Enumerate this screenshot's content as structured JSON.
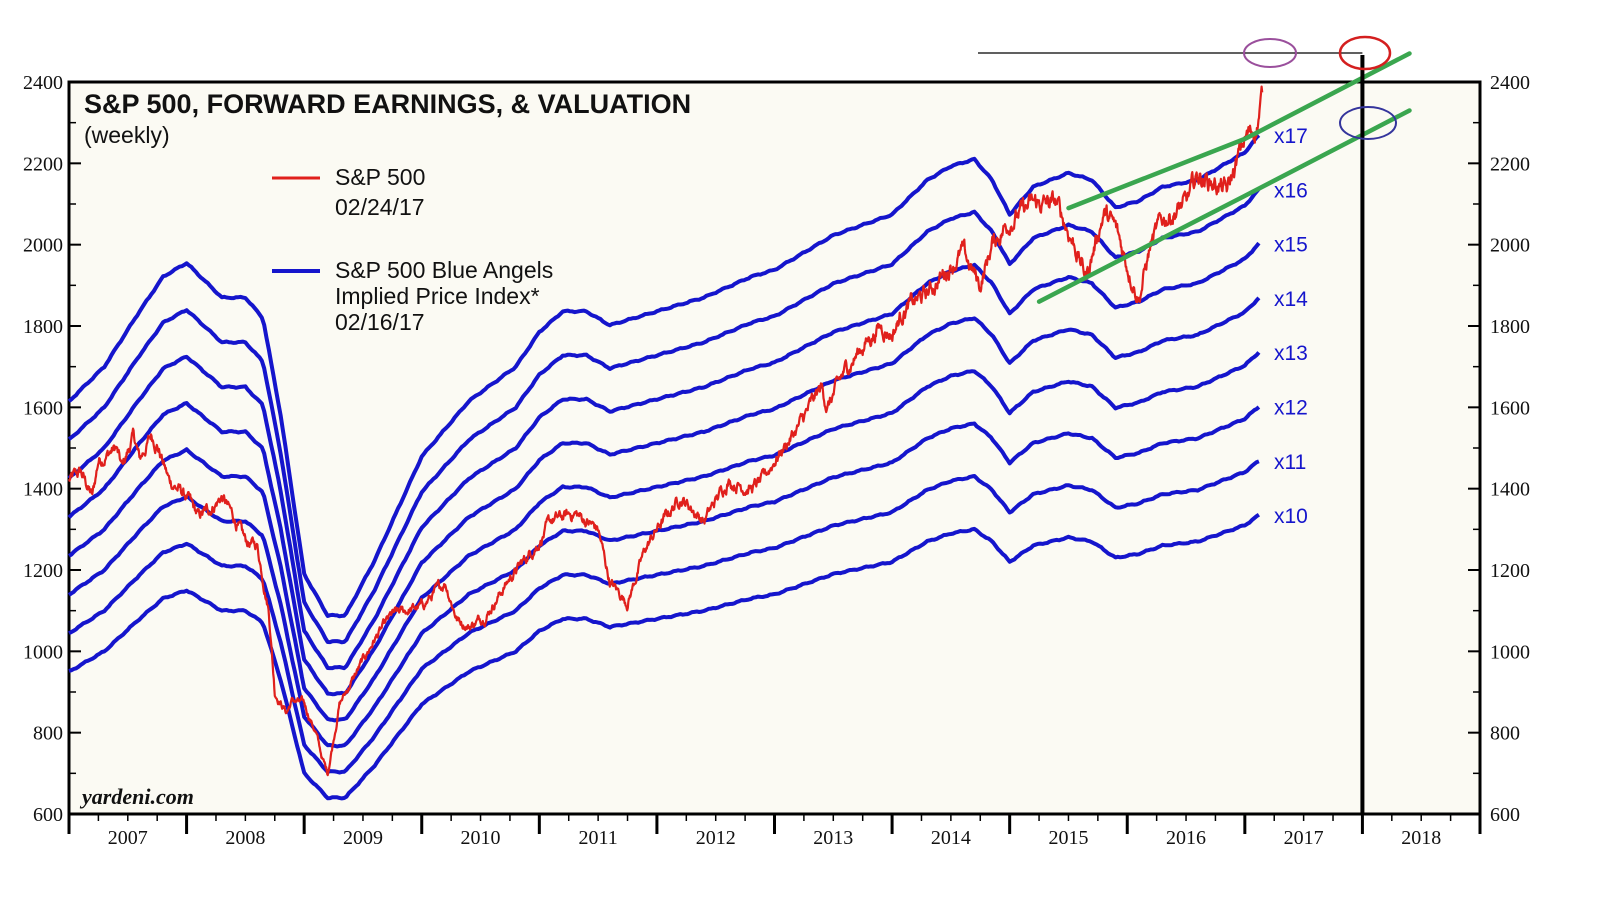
{
  "colors": {
    "sp500": "#e0201c",
    "blue_angels": "#1515cc",
    "channel": "#3aa64f",
    "plot_bg": "#fbfaf3",
    "axis": "#000000",
    "circle_purple": "#9a4f9c",
    "circle_red": "#d41f1f",
    "circle_blue": "#34349c"
  },
  "chart_data": {
    "type": "line",
    "title": "S&P 500, FORWARD EARNINGS, & VALUATION",
    "subtitle": "(weekly)",
    "source": "yardeni.com",
    "legend": [
      {
        "key": "sp500",
        "name": "S&P 500",
        "date": "02/24/17"
      },
      {
        "key": "blue",
        "name": "S&P 500 Blue Angels",
        "name2": "Implied Price Index*",
        "date": "02/16/17"
      }
    ],
    "ylim": [
      600,
      2400
    ],
    "yticks": [
      "600",
      "800",
      "1000",
      "1200",
      "1400",
      "1600",
      "1800",
      "2000",
      "2200",
      "2400"
    ],
    "xlim": [
      2007,
      2019
    ],
    "xticks": [
      "2007",
      "2008",
      "2009",
      "2010",
      "2011",
      "2012",
      "2013",
      "2014",
      "2015",
      "2016",
      "2017",
      "2018"
    ],
    "multiples": [
      "x10",
      "x11",
      "x12",
      "x13",
      "x14",
      "x15",
      "x16",
      "x17"
    ],
    "forward_earnings": {
      "x": [
        2007.0,
        2007.3,
        2007.6,
        2007.8,
        2008.0,
        2008.3,
        2008.5,
        2008.65,
        2008.8,
        2009.0,
        2009.2,
        2009.35,
        2009.6,
        2010.0,
        2010.4,
        2010.8,
        2011.0,
        2011.2,
        2011.4,
        2011.6,
        2012.0,
        2012.4,
        2012.8,
        2013.0,
        2013.5,
        2014.0,
        2014.3,
        2014.5,
        2014.7,
        2014.85,
        2015.0,
        2015.2,
        2015.5,
        2015.7,
        2015.9,
        2016.1,
        2016.3,
        2016.6,
        2017.0,
        2017.12
      ],
      "values": [
        95,
        100,
        108,
        113,
        115,
        110,
        110,
        107,
        93,
        70,
        64,
        64,
        72,
        87,
        95,
        100,
        105,
        108,
        108,
        106,
        108,
        110,
        113,
        114,
        119,
        122,
        127,
        129,
        130,
        127,
        122,
        126,
        128,
        127,
        123,
        124,
        126,
        127,
        131,
        133.5
      ]
    },
    "series": [
      {
        "name": "S&P 500",
        "date": "02/24/17",
        "x": [
          2007.0,
          2007.1,
          2007.2,
          2007.25,
          2007.4,
          2007.45,
          2007.55,
          2007.6,
          2007.7,
          2007.75,
          2007.85,
          2008.0,
          2008.1,
          2008.2,
          2008.3,
          2008.4,
          2008.5,
          2008.6,
          2008.7,
          2008.75,
          2008.85,
          2008.9,
          2009.0,
          2009.1,
          2009.15,
          2009.2,
          2009.3,
          2009.45,
          2009.6,
          2009.75,
          2010.0,
          2010.2,
          2010.3,
          2010.4,
          2010.55,
          2010.75,
          2011.0,
          2011.1,
          2011.3,
          2011.5,
          2011.6,
          2011.75,
          2011.9,
          2012.0,
          2012.2,
          2012.4,
          2012.6,
          2012.8,
          2012.9,
          2013.0,
          2013.2,
          2013.4,
          2013.45,
          2013.6,
          2013.75,
          2013.9,
          2014.0,
          2014.1,
          2014.3,
          2014.5,
          2014.6,
          2014.75,
          2014.85,
          2015.0,
          2015.2,
          2015.4,
          2015.55,
          2015.65,
          2015.8,
          2015.9,
          2016.0,
          2016.1,
          2016.2,
          2016.3,
          2016.5,
          2016.6,
          2016.75,
          2016.85,
          2017.0,
          2017.1,
          2017.15
        ],
        "values": [
          1420,
          1440,
          1380,
          1470,
          1500,
          1450,
          1530,
          1470,
          1530,
          1510,
          1420,
          1380,
          1330,
          1350,
          1380,
          1330,
          1270,
          1260,
          1100,
          900,
          850,
          880,
          870,
          800,
          740,
          700,
          870,
          950,
          1030,
          1090,
          1110,
          1170,
          1080,
          1060,
          1090,
          1180,
          1270,
          1320,
          1340,
          1300,
          1170,
          1120,
          1250,
          1300,
          1380,
          1320,
          1420,
          1400,
          1420,
          1470,
          1550,
          1650,
          1600,
          1690,
          1750,
          1800,
          1780,
          1840,
          1880,
          1950,
          1980,
          1900,
          2000,
          2060,
          2100,
          2100,
          2000,
          1920,
          2080,
          2040,
          1950,
          1870,
          2000,
          2060,
          2100,
          2170,
          2150,
          2130,
          2260,
          2290,
          2370
        ]
      }
    ],
    "channel_lines": [
      {
        "x": [
          2015.5,
          2017.0,
          2018.4
        ],
        "values": [
          2090,
          2260,
          2470
        ]
      },
      {
        "x": [
          2015.25,
          2017.0,
          2018.4
        ],
        "values": [
          1860,
          2120,
          2330
        ]
      }
    ]
  }
}
